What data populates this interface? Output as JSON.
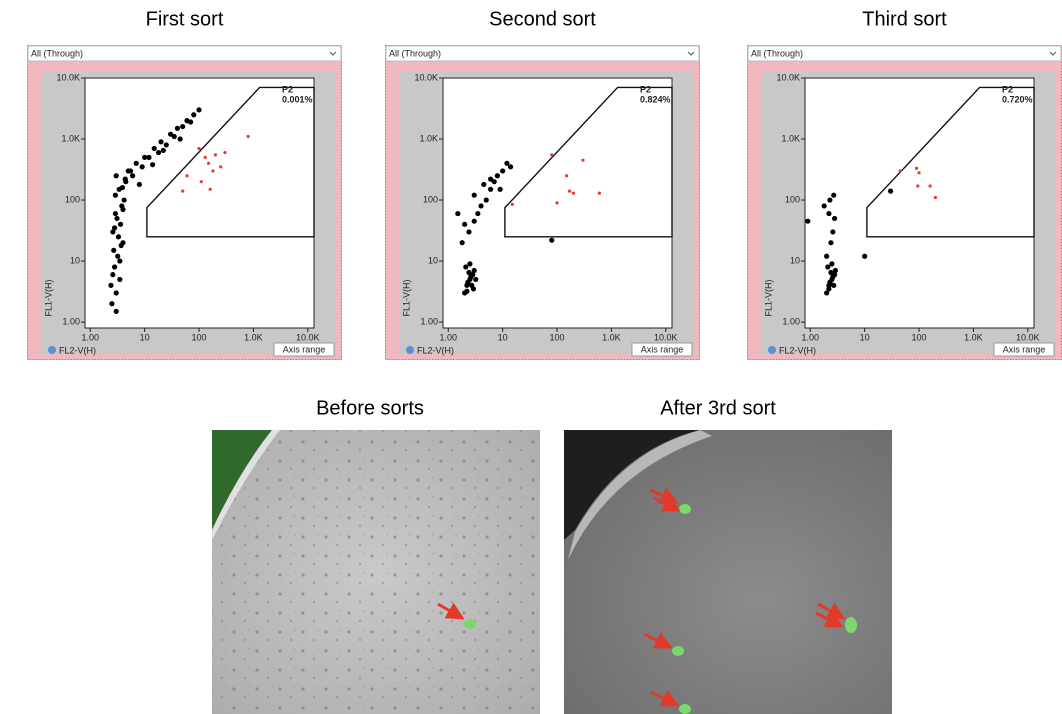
{
  "chart_data": [
    {
      "type": "scatter",
      "title": "First sort",
      "dropdown": "All (Through)",
      "xlabel": "FL2-V(H)",
      "ylabel": "FL1-V(H)",
      "button": "Axis range",
      "log": true,
      "xlim": [
        0.8,
        13000
      ],
      "ylim": [
        0.8,
        10000
      ],
      "xticks": [
        {
          "value": 1,
          "label": "1.00"
        },
        10,
        100,
        {
          "value": 1000,
          "label": "1.0K"
        },
        {
          "value": 10000,
          "label": "10.0K"
        }
      ],
      "yticks": [
        {
          "value": 1,
          "label": "1.00"
        },
        10,
        100,
        {
          "value": 1000,
          "label": "1.0K"
        },
        {
          "value": 10000,
          "label": "10.0K"
        }
      ],
      "gate": {
        "name": "P2",
        "percent": "0.001%",
        "x": [
          11,
          11,
          1300,
          13000,
          13000
        ],
        "y": [
          25,
          75,
          7000,
          7000,
          25
        ]
      },
      "series": [
        {
          "color": "#000000",
          "x": [
            2.5,
            3,
            3.5,
            2.8,
            3.2,
            4,
            2.6,
            3.1,
            3.8,
            2.9,
            3.4,
            4.5,
            3,
            5,
            7,
            10,
            15,
            20,
            30,
            40,
            60,
            80,
            100,
            2.7,
            3.3,
            3.6,
            2.9,
            4.2,
            6,
            9,
            12,
            18,
            25,
            35,
            50,
            3,
            3.5,
            2.6,
            4,
            8,
            2.4,
            3.7,
            2.8,
            3.9,
            4.4,
            5.5,
            14,
            22,
            45,
            70
          ],
          "y": [
            2,
            3,
            5,
            8,
            12,
            20,
            30,
            50,
            80,
            120,
            150,
            200,
            250,
            300,
            400,
            500,
            700,
            900,
            1200,
            1500,
            2000,
            2500,
            3000,
            15,
            25,
            40,
            60,
            100,
            250,
            350,
            500,
            600,
            800,
            1100,
            1600,
            1.5,
            10,
            6,
            70,
            180,
            4,
            18,
            35,
            160,
            220,
            300,
            380,
            650,
            1000,
            1900
          ]
        },
        {
          "name": "P2",
          "color": "#e8382f",
          "x": [
            100,
            130,
            150,
            180,
            200,
            250,
            110,
            160,
            800,
            60,
            300,
            50
          ],
          "y": [
            700,
            500,
            400,
            300,
            550,
            350,
            200,
            150,
            1100,
            250,
            600,
            140
          ]
        }
      ]
    },
    {
      "type": "scatter",
      "title": "Second sort",
      "dropdown": "All (Through)",
      "xlabel": "FL2-V(H)",
      "ylabel": "FL1-V(H)",
      "button": "Axis range",
      "log": true,
      "xlim": [
        0.8,
        13000
      ],
      "ylim": [
        0.8,
        10000
      ],
      "xticks": [
        {
          "value": 1,
          "label": "1.00"
        },
        10,
        100,
        {
          "value": 1000,
          "label": "1.0K"
        },
        {
          "value": 10000,
          "label": "10.0K"
        }
      ],
      "yticks": [
        {
          "value": 1,
          "label": "1.00"
        },
        10,
        100,
        {
          "value": 1000,
          "label": "1.0K"
        },
        {
          "value": 10000,
          "label": "10.0K"
        }
      ],
      "gate": {
        "name": "P2",
        "percent": "0.824%",
        "x": [
          11,
          11,
          1300,
          13000,
          13000
        ],
        "y": [
          25,
          75,
          7000,
          7000,
          25
        ]
      },
      "series": [
        {
          "color": "#000000",
          "x": [
            2,
            2.2,
            2.5,
            2.8,
            3,
            2.3,
            2.6,
            2.9,
            2.1,
            2.4,
            2.7,
            3.2,
            2.5,
            2.2,
            2.8,
            1.8,
            2.4,
            3,
            3.5,
            4,
            5,
            6,
            7,
            8,
            10,
            12,
            14,
            3,
            4.5,
            6,
            1.5,
            2,
            9,
            80
          ],
          "y": [
            3,
            4,
            5,
            6,
            7,
            4.5,
            5.5,
            3.5,
            8,
            6.5,
            4,
            5,
            9,
            3.2,
            6,
            20,
            30,
            45,
            60,
            80,
            100,
            150,
            200,
            250,
            300,
            400,
            350,
            120,
            180,
            220,
            60,
            40,
            150,
            22
          ]
        },
        {
          "name": "P2",
          "color": "#e8382f",
          "x": [
            15,
            80,
            150,
            200,
            300,
            600,
            100,
            170
          ],
          "y": [
            85,
            550,
            250,
            130,
            450,
            130,
            90,
            140
          ]
        }
      ]
    },
    {
      "type": "scatter",
      "title": "Third sort",
      "dropdown": "All (Through)",
      "xlabel": "FL2-V(H)",
      "ylabel": "FL1-V(H)",
      "button": "Axis range",
      "log": true,
      "xlim": [
        0.8,
        13000
      ],
      "ylim": [
        0.8,
        10000
      ],
      "xticks": [
        {
          "value": 1,
          "label": "1.00"
        },
        10,
        100,
        {
          "value": 1000,
          "label": "1.0K"
        },
        {
          "value": 10000,
          "label": "10.0K"
        }
      ],
      "yticks": [
        {
          "value": 1,
          "label": "1.00"
        },
        10,
        100,
        {
          "value": 1000,
          "label": "1.0K"
        },
        {
          "value": 10000,
          "label": "10.0K"
        }
      ],
      "gate": {
        "name": "P2",
        "percent": "0.720%",
        "x": [
          11,
          11,
          1300,
          13000,
          13000
        ],
        "y": [
          25,
          75,
          7000,
          7000,
          25
        ]
      },
      "series": [
        {
          "color": "#000000",
          "x": [
            2,
            2.2,
            2.5,
            2.8,
            2.3,
            2.6,
            2.1,
            2.4,
            2.7,
            2.5,
            2.2,
            2.9,
            2,
            2.4,
            2.6,
            2.8,
            1.8,
            2.3,
            0.9,
            10,
            30,
            2.7,
            2.2
          ],
          "y": [
            3,
            4,
            5,
            6,
            4.5,
            5.5,
            8,
            6.5,
            4,
            9,
            3.5,
            7,
            12,
            20,
            30,
            50,
            80,
            100,
            45,
            12,
            140,
            120,
            60
          ]
        },
        {
          "name": "P2",
          "color": "#e8382f",
          "x": [
            45,
            90,
            100,
            95,
            160,
            200
          ],
          "y": [
            300,
            330,
            280,
            170,
            170,
            110
          ]
        }
      ]
    }
  ],
  "images": [
    {
      "title": "Before sorts"
    },
    {
      "title": "After 3rd sort"
    }
  ]
}
